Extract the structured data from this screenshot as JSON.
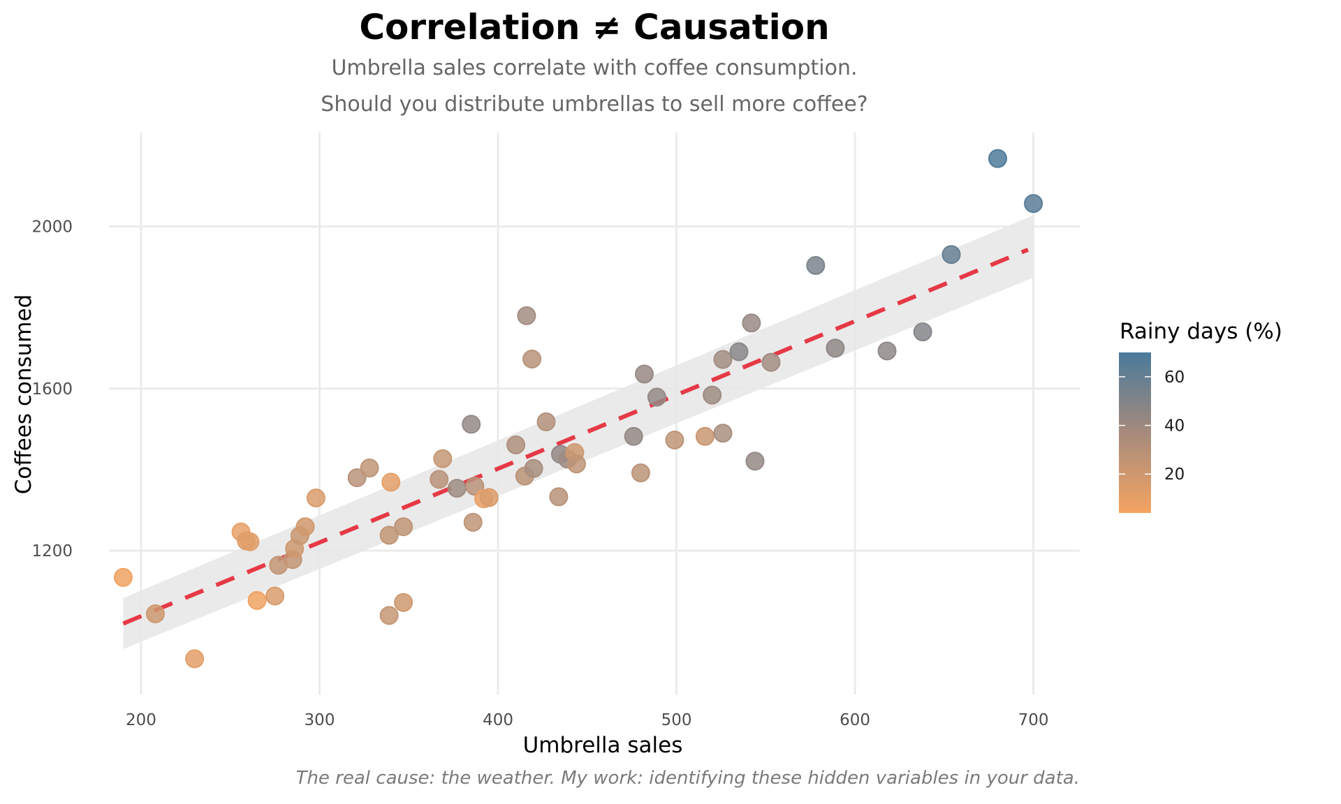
{
  "chart_data": {
    "type": "scatter",
    "title": "Correlation ≠ Causation",
    "subtitle": [
      "Umbrella sales correlate with coffee consumption.",
      "Should you distribute umbrellas to sell more coffee?"
    ],
    "caption": "The real cause: the weather. My work: identifying these hidden variables in your data.",
    "xlabel": "Umbrella sales",
    "ylabel": "Coffees consumed",
    "xlim": [
      182,
      726
    ],
    "ylim": [
      845,
      2232
    ],
    "xticks": [
      200,
      300,
      400,
      500,
      600,
      700
    ],
    "yticks": [
      1200,
      1600,
      2000
    ],
    "grid": true,
    "legend": {
      "title": "Rainy days (%)",
      "type": "colorbar",
      "position": "right",
      "range": [
        4,
        70
      ],
      "ticks": [
        20,
        40,
        60
      ],
      "colors": {
        "low": "#f4a462",
        "mid": "#9b8b84",
        "high": "#4a7a9b"
      }
    },
    "trend": {
      "style": "dashed",
      "color": "#e63946",
      "x": [
        190,
        697
      ],
      "y": [
        1020,
        1943
      ],
      "ci_band": {
        "x": [
          190,
          700
        ],
        "upper": [
          1083,
          2028
        ],
        "lower": [
          957,
          1874
        ],
        "color": "#e8e8e8"
      }
    },
    "points": [
      {
        "x": 190,
        "y": 1134,
        "rain": 5
      },
      {
        "x": 208,
        "y": 1044,
        "rain": 18
      },
      {
        "x": 230,
        "y": 933,
        "rain": 10
      },
      {
        "x": 256,
        "y": 1246,
        "rain": 9
      },
      {
        "x": 259,
        "y": 1224,
        "rain": 12
      },
      {
        "x": 261,
        "y": 1222,
        "rain": 11
      },
      {
        "x": 265,
        "y": 1077,
        "rain": 5
      },
      {
        "x": 275,
        "y": 1088,
        "rain": 14
      },
      {
        "x": 277,
        "y": 1164,
        "rain": 22
      },
      {
        "x": 285,
        "y": 1178,
        "rain": 22
      },
      {
        "x": 286,
        "y": 1205,
        "rain": 18
      },
      {
        "x": 289,
        "y": 1237,
        "rain": 20
      },
      {
        "x": 292,
        "y": 1259,
        "rain": 17
      },
      {
        "x": 298,
        "y": 1330,
        "rain": 14
      },
      {
        "x": 321,
        "y": 1380,
        "rain": 26
      },
      {
        "x": 328,
        "y": 1404,
        "rain": 24
      },
      {
        "x": 339,
        "y": 1238,
        "rain": 23
      },
      {
        "x": 339,
        "y": 1040,
        "rain": 21
      },
      {
        "x": 340,
        "y": 1369,
        "rain": 10
      },
      {
        "x": 347,
        "y": 1259,
        "rain": 24
      },
      {
        "x": 347,
        "y": 1072,
        "rain": 18
      },
      {
        "x": 367,
        "y": 1376,
        "rain": 26
      },
      {
        "x": 369,
        "y": 1427,
        "rain": 21
      },
      {
        "x": 377,
        "y": 1354,
        "rain": 36
      },
      {
        "x": 385,
        "y": 1512,
        "rain": 40
      },
      {
        "x": 386,
        "y": 1270,
        "rain": 24
      },
      {
        "x": 387,
        "y": 1359,
        "rain": 26
      },
      {
        "x": 392,
        "y": 1328,
        "rain": 8
      },
      {
        "x": 395,
        "y": 1331,
        "rain": 14
      },
      {
        "x": 410,
        "y": 1461,
        "rain": 30
      },
      {
        "x": 415,
        "y": 1384,
        "rain": 25
      },
      {
        "x": 416,
        "y": 1780,
        "rain": 34
      },
      {
        "x": 419,
        "y": 1673,
        "rain": 26
      },
      {
        "x": 420,
        "y": 1403,
        "rain": 32
      },
      {
        "x": 427,
        "y": 1518,
        "rain": 28
      },
      {
        "x": 434,
        "y": 1333,
        "rain": 26
      },
      {
        "x": 435,
        "y": 1438,
        "rain": 40
      },
      {
        "x": 439,
        "y": 1426,
        "rain": 36
      },
      {
        "x": 443,
        "y": 1442,
        "rain": 18
      },
      {
        "x": 444,
        "y": 1414,
        "rain": 24
      },
      {
        "x": 476,
        "y": 1482,
        "rain": 40
      },
      {
        "x": 480,
        "y": 1392,
        "rain": 25
      },
      {
        "x": 482,
        "y": 1636,
        "rain": 38
      },
      {
        "x": 489,
        "y": 1579,
        "rain": 40
      },
      {
        "x": 499,
        "y": 1473,
        "rain": 24
      },
      {
        "x": 516,
        "y": 1482,
        "rain": 20
      },
      {
        "x": 520,
        "y": 1584,
        "rain": 36
      },
      {
        "x": 526,
        "y": 1490,
        "rain": 32
      },
      {
        "x": 526,
        "y": 1672,
        "rain": 34
      },
      {
        "x": 535,
        "y": 1691,
        "rain": 44
      },
      {
        "x": 542,
        "y": 1762,
        "rain": 38
      },
      {
        "x": 544,
        "y": 1421,
        "rain": 40
      },
      {
        "x": 553,
        "y": 1665,
        "rain": 34
      },
      {
        "x": 578,
        "y": 1904,
        "rain": 50
      },
      {
        "x": 589,
        "y": 1700,
        "rain": 42
      },
      {
        "x": 618,
        "y": 1693,
        "rain": 42
      },
      {
        "x": 638,
        "y": 1740,
        "rain": 46
      },
      {
        "x": 654,
        "y": 1931,
        "rain": 58
      },
      {
        "x": 680,
        "y": 2168,
        "rain": 68
      },
      {
        "x": 700,
        "y": 2057,
        "rain": 64
      }
    ]
  }
}
